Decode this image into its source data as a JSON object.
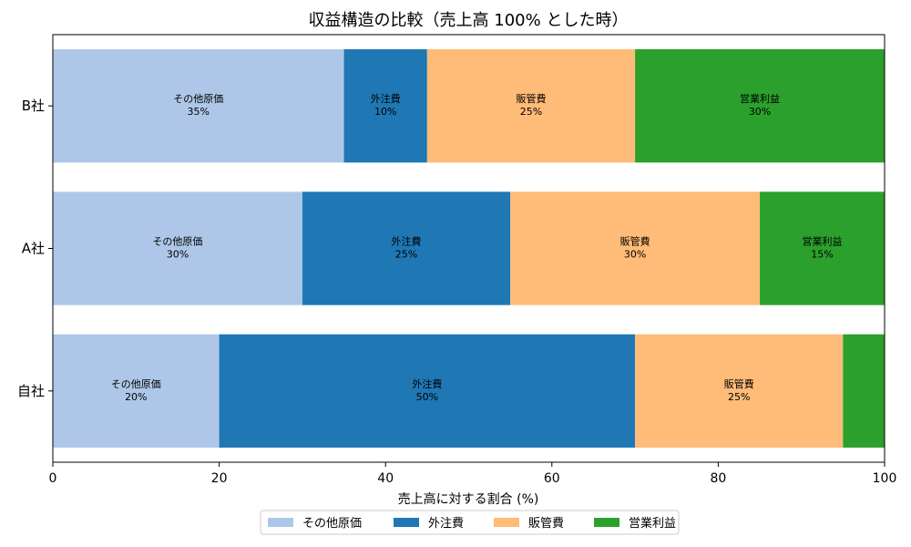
{
  "chart_data": {
    "type": "bar",
    "orientation": "horizontal",
    "stacked": true,
    "title": "収益構造の比較（売上高 100% とした時）",
    "xlabel": "売上高に対する割合 (%)",
    "ylabel": "",
    "xlim": [
      0,
      100
    ],
    "xticks": [
      "0",
      "20",
      "40",
      "60",
      "80",
      "100"
    ],
    "categories": [
      "B社",
      "A社",
      "自社"
    ],
    "series": [
      {
        "name": "その他原価",
        "color": "#aec7e8",
        "values": [
          35,
          30,
          20
        ],
        "labels": [
          "35%",
          "30%",
          "20%"
        ],
        "show_label": [
          true,
          true,
          true
        ]
      },
      {
        "name": "外注費",
        "color": "#1f77b4",
        "values": [
          10,
          25,
          50
        ],
        "labels": [
          "10%",
          "25%",
          "50%"
        ],
        "show_label": [
          true,
          true,
          true
        ]
      },
      {
        "name": "販管費",
        "color": "#ffbb78",
        "values": [
          25,
          30,
          25
        ],
        "labels": [
          "25%",
          "30%",
          "25%"
        ],
        "show_label": [
          true,
          true,
          true
        ]
      },
      {
        "name": "営業利益",
        "color": "#2ca02c",
        "values": [
          30,
          15,
          5
        ],
        "labels": [
          "30%",
          "15%",
          "5%"
        ],
        "show_label": [
          true,
          true,
          false
        ]
      }
    ],
    "legend": {
      "position": "bottom-center",
      "columns": 4
    },
    "grid": false
  }
}
